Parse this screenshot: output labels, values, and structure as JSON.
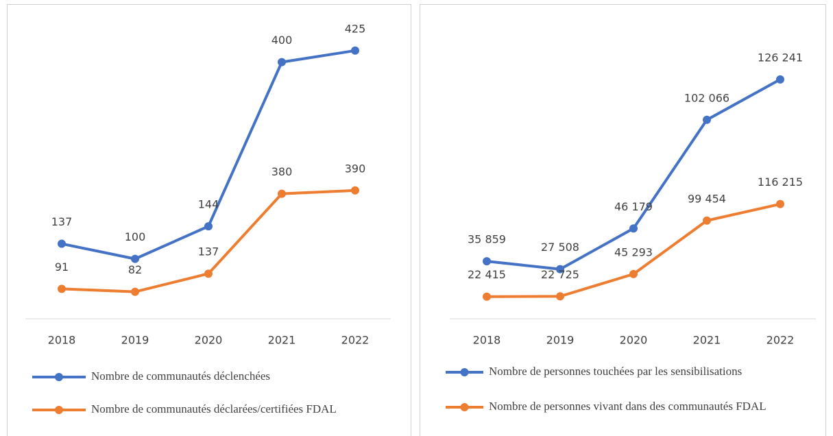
{
  "chart_data": [
    {
      "type": "line",
      "stacked": true,
      "categories": [
        "2018",
        "2019",
        "2020",
        "2021",
        "2022"
      ],
      "series": [
        {
          "name": "Nombre de communautés déclenchées",
          "color": "#4472c4",
          "values": [
            137,
            100,
            144,
            400,
            425
          ]
        },
        {
          "name": "Nombre de communautés déclarées/certifiées FDAL",
          "color": "#ed7d31",
          "values": [
            91,
            82,
            137,
            380,
            390
          ]
        }
      ],
      "ylim": [
        0,
        900
      ]
    },
    {
      "type": "line",
      "stacked": true,
      "categories": [
        "2018",
        "2019",
        "2020",
        "2021",
        "2022"
      ],
      "series": [
        {
          "name": "Nombre de personnes touchées par les sensibilisations",
          "color": "#4472c4",
          "values": [
            35859,
            27508,
            46179,
            102066,
            126241
          ],
          "value_labels": [
            "35 859",
            "27 508",
            "46 179",
            "102 066",
            "126 241"
          ]
        },
        {
          "name": "Nombre de personnes vivant dans des communautés FDAL",
          "color": "#ed7d31",
          "values": [
            22415,
            22725,
            45293,
            99454,
            116215
          ],
          "value_labels": [
            "22 415",
            "22 725",
            "45 293",
            "99 454",
            "116 215"
          ]
        }
      ],
      "ylim": [
        0,
        300000
      ]
    }
  ]
}
